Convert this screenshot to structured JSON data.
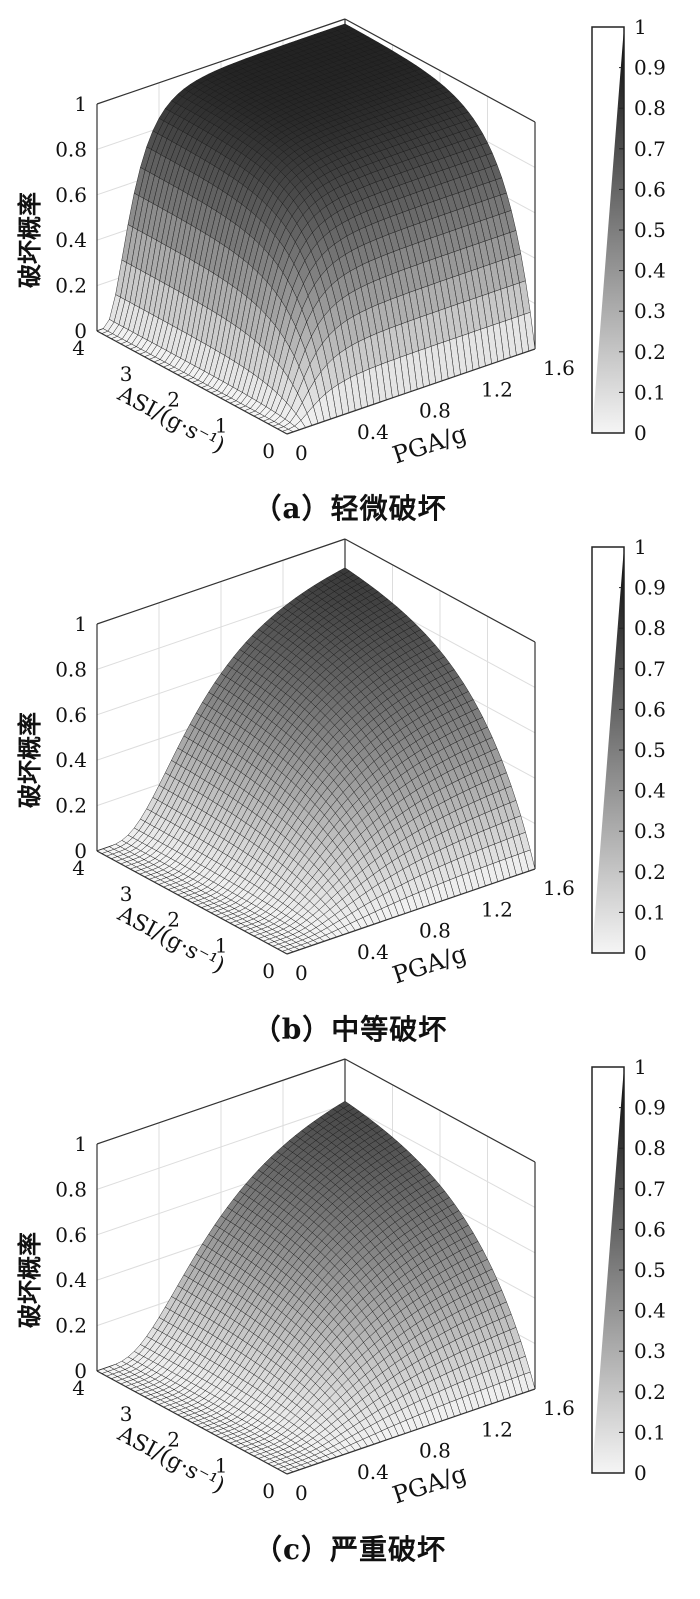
{
  "panels": [
    {
      "caption": "（a）轻微破坏",
      "chart_data": {
        "type": "surface",
        "title": "",
        "zlabel": "破坏概率",
        "xlabel": "PGA/g",
        "ylabel": "ASI/(g·s⁻¹)",
        "x_ticks": [
          "0",
          "0.4",
          "0.8",
          "1.2",
          "1.6"
        ],
        "y_ticks": [
          "0",
          "1",
          "2",
          "3",
          "4"
        ],
        "z_ticks": [
          "0",
          "0.2",
          "0.4",
          "0.6",
          "0.8",
          "1"
        ],
        "xlim": [
          0,
          1.6
        ],
        "ylim": [
          0,
          4
        ],
        "zlim": [
          0,
          1
        ],
        "colorbar_ticks": [
          "0",
          "0.1",
          "0.2",
          "0.3",
          "0.4",
          "0.5",
          "0.6",
          "0.7",
          "0.8",
          "0.9",
          "1"
        ],
        "colormap": "gray",
        "grid": true,
        "surface_model": {
          "pga_median": 0.22,
          "pga_beta": 0.55,
          "asi_scale": 0.6,
          "max": 0.98
        }
      }
    },
    {
      "caption": "（b）中等破坏",
      "chart_data": {
        "type": "surface",
        "title": "",
        "zlabel": "破坏概率",
        "xlabel": "PGA/g",
        "ylabel": "ASI/(g·s⁻¹)",
        "x_ticks": [
          "0",
          "0.4",
          "0.8",
          "1.2",
          "1.6"
        ],
        "y_ticks": [
          "0",
          "1",
          "2",
          "3",
          "4"
        ],
        "z_ticks": [
          "0",
          "0.2",
          "0.4",
          "0.6",
          "0.8",
          "1"
        ],
        "xlim": [
          0,
          1.6
        ],
        "ylim": [
          0,
          4
        ],
        "zlim": [
          0,
          1
        ],
        "colorbar_ticks": [
          "0",
          "0.1",
          "0.2",
          "0.3",
          "0.4",
          "0.5",
          "0.6",
          "0.7",
          "0.8",
          "0.9",
          "1"
        ],
        "colormap": "gray",
        "grid": true,
        "surface_model": {
          "pga_median": 0.65,
          "pga_beta": 0.6,
          "asi_scale": 1.2,
          "max": 0.97
        }
      }
    },
    {
      "caption": "（c）严重破坏",
      "chart_data": {
        "type": "surface",
        "title": "",
        "zlabel": "破坏概率",
        "xlabel": "PGA/g",
        "ylabel": "ASI/(g·s⁻¹)",
        "x_ticks": [
          "0",
          "0.4",
          "0.8",
          "1.2",
          "1.6"
        ],
        "y_ticks": [
          "0",
          "1",
          "2",
          "3",
          "4"
        ],
        "z_ticks": [
          "0",
          "0.2",
          "0.4",
          "0.6",
          "0.8",
          "1"
        ],
        "xlim": [
          0,
          1.6
        ],
        "ylim": [
          0,
          4
        ],
        "zlim": [
          0,
          1
        ],
        "colorbar_ticks": [
          "0",
          "0.1",
          "0.2",
          "0.3",
          "0.4",
          "0.5",
          "0.6",
          "0.7",
          "0.8",
          "0.9",
          "1"
        ],
        "colormap": "gray",
        "grid": true,
        "surface_model": {
          "pga_median": 0.75,
          "pga_beta": 0.62,
          "asi_scale": 1.3,
          "max": 0.96
        }
      }
    }
  ]
}
